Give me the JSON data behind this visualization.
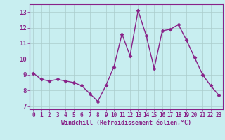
{
  "x": [
    0,
    1,
    2,
    3,
    4,
    5,
    6,
    7,
    8,
    9,
    10,
    11,
    12,
    13,
    14,
    15,
    16,
    17,
    18,
    19,
    20,
    21,
    22,
    23
  ],
  "y": [
    9.1,
    8.7,
    8.6,
    8.7,
    8.6,
    8.5,
    8.3,
    7.8,
    7.3,
    8.3,
    9.5,
    11.6,
    10.2,
    13.1,
    11.5,
    9.4,
    11.8,
    11.9,
    12.2,
    11.2,
    10.1,
    9.0,
    8.3,
    7.7
  ],
  "line_color": "#882288",
  "marker": "D",
  "marker_size": 2.5,
  "bg_color": "#c8eef0",
  "grid_color": "#aacccc",
  "xlabel": "Windchill (Refroidissement éolien,°C)",
  "xlabel_color": "#882288",
  "tick_color": "#882288",
  "spine_color": "#882288",
  "ylim": [
    6.8,
    13.5
  ],
  "yticks": [
    7,
    8,
    9,
    10,
    11,
    12,
    13
  ],
  "xlim": [
    -0.5,
    23.5
  ],
  "xticks": [
    0,
    1,
    2,
    3,
    4,
    5,
    6,
    7,
    8,
    9,
    10,
    11,
    12,
    13,
    14,
    15,
    16,
    17,
    18,
    19,
    20,
    21,
    22,
    23
  ],
  "tick_fontsize": 6,
  "xlabel_fontsize": 6,
  "linewidth": 1.0
}
